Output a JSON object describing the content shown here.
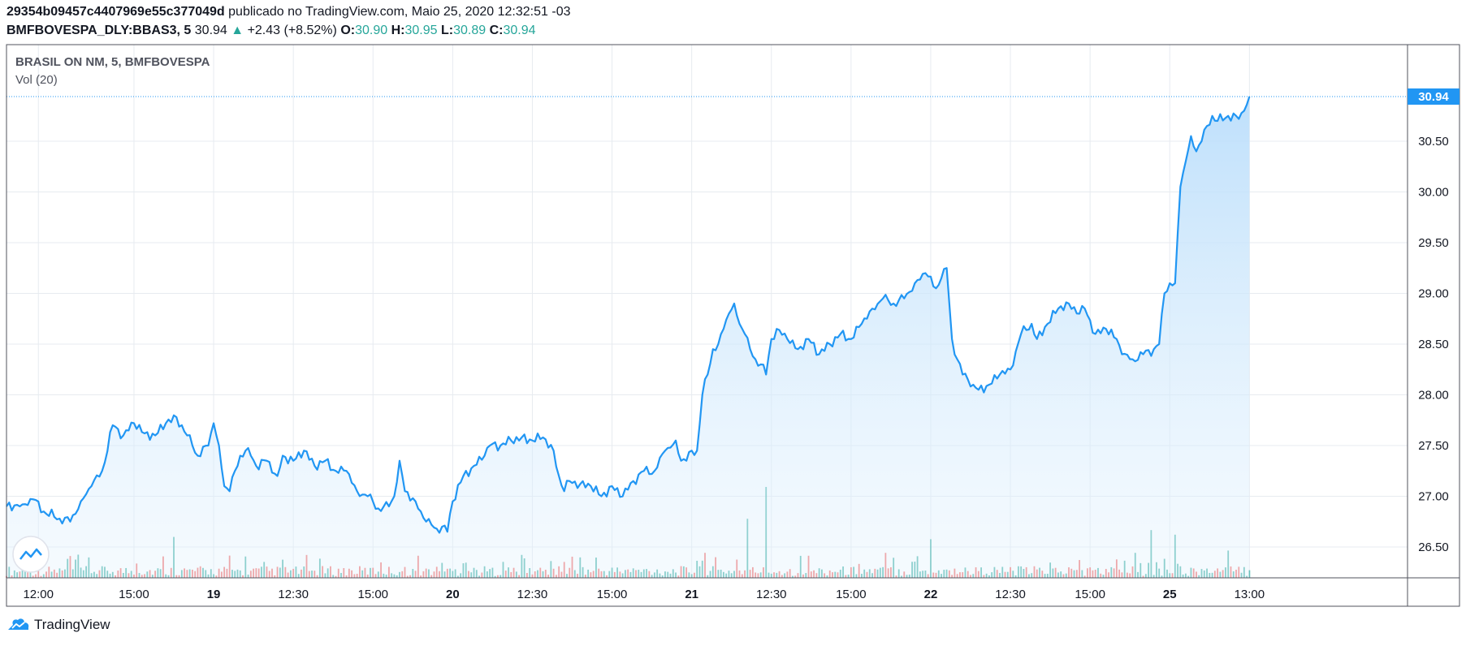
{
  "header": {
    "publisher_id": "29354b09457c4407969e55c377049d",
    "published_text": "publicado no TradingView.com, Maio 25, 2020 12:32:51 -03",
    "symbol": "BMFBOVESPA_DLY:BBAS3, 5",
    "last": "30.94",
    "change": "+2.43 (+8.52%)",
    "o_label": "O:",
    "o_value": "30.90",
    "h_label": "H:",
    "h_value": "30.95",
    "l_label": "L:",
    "l_value": "30.89",
    "c_label": "C:",
    "c_value": "30.94"
  },
  "legend": {
    "title": "BRASIL ON NM, 5, BMFBOVESPA",
    "volume_label": "Vol (20)"
  },
  "footer": {
    "brand": "TradingView"
  },
  "colors": {
    "line": "#2196f3",
    "area_top": "#bbdefb",
    "vol_up": "#26a69a",
    "vol_down": "#ef5350",
    "grid": "#e7ebf0",
    "price_label_bg": "#2196f3"
  },
  "chart_data": {
    "type": "area",
    "title": "BRASIL ON NM, 5, BMFBOVESPA",
    "ylabel": "",
    "ylim": [
      26.2,
      31.25
    ],
    "yticks": [
      "26.50",
      "27.00",
      "27.50",
      "28.00",
      "28.50",
      "29.00",
      "29.50",
      "30.00",
      "30.50"
    ],
    "last_price_label": "30.94",
    "last_price": 30.94,
    "xticks": [
      {
        "label": "12:00",
        "idx": 12,
        "bold": false
      },
      {
        "label": "15:00",
        "idx": 48,
        "bold": false
      },
      {
        "label": "19",
        "idx": 78,
        "bold": true
      },
      {
        "label": "12:30",
        "idx": 108,
        "bold": false
      },
      {
        "label": "15:00",
        "idx": 138,
        "bold": false
      },
      {
        "label": "20",
        "idx": 168,
        "bold": true
      },
      {
        "label": "12:30",
        "idx": 198,
        "bold": false
      },
      {
        "label": "15:00",
        "idx": 228,
        "bold": false
      },
      {
        "label": "21",
        "idx": 258,
        "bold": true
      },
      {
        "label": "12:30",
        "idx": 288,
        "bold": false
      },
      {
        "label": "15:00",
        "idx": 318,
        "bold": false
      },
      {
        "label": "22",
        "idx": 348,
        "bold": true
      },
      {
        "label": "12:30",
        "idx": 378,
        "bold": false
      },
      {
        "label": "15:00",
        "idx": 408,
        "bold": false
      },
      {
        "label": "25",
        "idx": 438,
        "bold": true
      },
      {
        "label": "13:00",
        "idx": 468,
        "bold": false
      }
    ],
    "key_points": [
      [
        0,
        26.9
      ],
      [
        6,
        26.92
      ],
      [
        10,
        26.97
      ],
      [
        14,
        26.85
      ],
      [
        20,
        26.78
      ],
      [
        24,
        26.75
      ],
      [
        28,
        26.95
      ],
      [
        32,
        27.1
      ],
      [
        36,
        27.25
      ],
      [
        40,
        27.7
      ],
      [
        44,
        27.6
      ],
      [
        48,
        27.72
      ],
      [
        52,
        27.62
      ],
      [
        56,
        27.6
      ],
      [
        60,
        27.72
      ],
      [
        64,
        27.78
      ],
      [
        68,
        27.6
      ],
      [
        70,
        27.5
      ],
      [
        72,
        27.4
      ],
      [
        76,
        27.5
      ],
      [
        78,
        27.72
      ],
      [
        80,
        27.5
      ],
      [
        82,
        27.1
      ],
      [
        84,
        27.05
      ],
      [
        86,
        27.25
      ],
      [
        88,
        27.4
      ],
      [
        90,
        27.45
      ],
      [
        92,
        27.4
      ],
      [
        94,
        27.3
      ],
      [
        98,
        27.35
      ],
      [
        102,
        27.2
      ],
      [
        104,
        27.4
      ],
      [
        108,
        27.35
      ],
      [
        112,
        27.45
      ],
      [
        116,
        27.3
      ],
      [
        120,
        27.35
      ],
      [
        124,
        27.25
      ],
      [
        128,
        27.25
      ],
      [
        132,
        27.05
      ],
      [
        136,
        27.0
      ],
      [
        140,
        26.88
      ],
      [
        144,
        26.9
      ],
      [
        146,
        27.0
      ],
      [
        148,
        27.35
      ],
      [
        150,
        27.05
      ],
      [
        154,
        26.95
      ],
      [
        156,
        26.85
      ],
      [
        158,
        26.75
      ],
      [
        162,
        26.68
      ],
      [
        164,
        26.7
      ],
      [
        166,
        26.65
      ],
      [
        168,
        26.95
      ],
      [
        172,
        27.2
      ],
      [
        176,
        27.3
      ],
      [
        180,
        27.4
      ],
      [
        182,
        27.5
      ],
      [
        186,
        27.5
      ],
      [
        190,
        27.55
      ],
      [
        194,
        27.58
      ],
      [
        198,
        27.55
      ],
      [
        202,
        27.58
      ],
      [
        206,
        27.45
      ],
      [
        208,
        27.2
      ],
      [
        210,
        27.05
      ],
      [
        212,
        27.15
      ],
      [
        216,
        27.12
      ],
      [
        220,
        27.1
      ],
      [
        224,
        27.0
      ],
      [
        228,
        27.1
      ],
      [
        232,
        27.0
      ],
      [
        236,
        27.15
      ],
      [
        240,
        27.25
      ],
      [
        244,
        27.25
      ],
      [
        248,
        27.45
      ],
      [
        250,
        27.48
      ],
      [
        252,
        27.55
      ],
      [
        254,
        27.35
      ],
      [
        256,
        27.35
      ],
      [
        258,
        27.45
      ],
      [
        260,
        27.45
      ],
      [
        262,
        28.0
      ],
      [
        264,
        28.2
      ],
      [
        266,
        28.45
      ],
      [
        268,
        28.5
      ],
      [
        270,
        28.65
      ],
      [
        272,
        28.8
      ],
      [
        274,
        28.9
      ],
      [
        276,
        28.7
      ],
      [
        278,
        28.6
      ],
      [
        280,
        28.45
      ],
      [
        282,
        28.35
      ],
      [
        284,
        28.3
      ],
      [
        286,
        28.2
      ],
      [
        288,
        28.55
      ],
      [
        290,
        28.65
      ],
      [
        294,
        28.55
      ],
      [
        298,
        28.45
      ],
      [
        302,
        28.55
      ],
      [
        306,
        28.4
      ],
      [
        310,
        28.5
      ],
      [
        314,
        28.6
      ],
      [
        318,
        28.55
      ],
      [
        322,
        28.7
      ],
      [
        326,
        28.85
      ],
      [
        330,
        28.95
      ],
      [
        334,
        28.9
      ],
      [
        338,
        28.95
      ],
      [
        342,
        29.1
      ],
      [
        346,
        29.2
      ],
      [
        350,
        29.05
      ],
      [
        352,
        29.15
      ],
      [
        354,
        29.25
      ],
      [
        356,
        28.55
      ],
      [
        358,
        28.35
      ],
      [
        360,
        28.2
      ],
      [
        362,
        28.15
      ],
      [
        364,
        28.1
      ],
      [
        366,
        28.05
      ],
      [
        370,
        28.1
      ],
      [
        374,
        28.2
      ],
      [
        378,
        28.25
      ],
      [
        382,
        28.6
      ],
      [
        386,
        28.7
      ],
      [
        388,
        28.55
      ],
      [
        392,
        28.7
      ],
      [
        396,
        28.85
      ],
      [
        400,
        28.9
      ],
      [
        404,
        28.8
      ],
      [
        406,
        28.85
      ],
      [
        410,
        28.6
      ],
      [
        414,
        28.65
      ],
      [
        418,
        28.55
      ],
      [
        420,
        28.4
      ],
      [
        424,
        28.35
      ],
      [
        428,
        28.4
      ],
      [
        432,
        28.45
      ],
      [
        434,
        28.5
      ],
      [
        436,
        29.0
      ],
      [
        438,
        29.1
      ],
      [
        440,
        29.1
      ],
      [
        442,
        30.05
      ],
      [
        444,
        30.3
      ],
      [
        446,
        30.55
      ],
      [
        448,
        30.4
      ],
      [
        450,
        30.5
      ],
      [
        452,
        30.65
      ],
      [
        454,
        30.75
      ],
      [
        456,
        30.7
      ],
      [
        460,
        30.75
      ],
      [
        464,
        30.72
      ],
      [
        466,
        30.8
      ],
      [
        468,
        30.94
      ]
    ],
    "volume": {
      "ylim_max": 2.0,
      "peaks": [
        {
          "idx": 63,
          "value": 0.9,
          "dir": "up"
        },
        {
          "idx": 97,
          "value": 0.35,
          "dir": "up"
        },
        {
          "idx": 216,
          "value": 0.45,
          "dir": "up"
        },
        {
          "idx": 263,
          "value": 0.55,
          "dir": "down"
        },
        {
          "idx": 279,
          "value": 1.3,
          "dir": "up"
        },
        {
          "idx": 286,
          "value": 2.0,
          "dir": "up"
        },
        {
          "idx": 331,
          "value": 0.55,
          "dir": "down"
        },
        {
          "idx": 348,
          "value": 0.85,
          "dir": "up"
        },
        {
          "idx": 425,
          "value": 0.55,
          "dir": "up"
        },
        {
          "idx": 431,
          "value": 1.05,
          "dir": "up"
        },
        {
          "idx": 440,
          "value": 0.95,
          "dir": "up"
        },
        {
          "idx": 460,
          "value": 0.6,
          "dir": "up"
        }
      ]
    }
  }
}
